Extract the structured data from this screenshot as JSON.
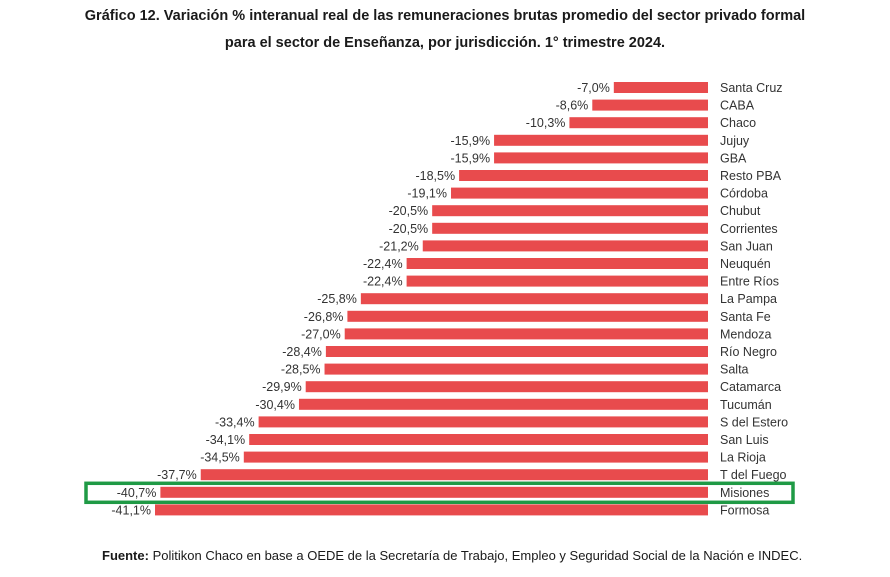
{
  "chart_data": {
    "type": "bar",
    "orientation": "horizontal",
    "title_line1": "Gráfico 12. Variación % interanual real de las remuneraciones brutas promedio del sector privado formal",
    "title_line2": "para el sector de Enseñanza, por jurisdicción. 1° trimestre 2024.",
    "categories": [
      "Santa Cruz",
      "CABA",
      "Chaco",
      "Jujuy",
      "GBA",
      "Resto PBA",
      "Córdoba",
      "Chubut",
      "Corrientes",
      "San Juan",
      "Neuquén",
      "Entre Ríos",
      "La Pampa",
      "Santa Fe",
      "Mendoza",
      "Río Negro",
      "Salta",
      "Catamarca",
      "Tucumán",
      "S del Estero",
      "San Luis",
      "La Rioja",
      "T del Fuego",
      "Misiones",
      "Formosa"
    ],
    "values": [
      -7.0,
      -8.6,
      -10.3,
      -15.9,
      -15.9,
      -18.5,
      -19.1,
      -20.5,
      -20.5,
      -21.2,
      -22.4,
      -22.4,
      -25.8,
      -26.8,
      -27.0,
      -28.4,
      -28.5,
      -29.9,
      -30.4,
      -33.4,
      -34.1,
      -34.5,
      -37.7,
      -40.7,
      -41.1
    ],
    "value_labels": [
      "-7,0%",
      "-8,6%",
      "-10,3%",
      "-15,9%",
      "-15,9%",
      "-18,5%",
      "-19,1%",
      "-20,5%",
      "-20,5%",
      "-21,2%",
      "-22,4%",
      "-22,4%",
      "-25,8%",
      "-26,8%",
      "-27,0%",
      "-28,4%",
      "-28,5%",
      "-29,9%",
      "-30,4%",
      "-33,4%",
      "-34,1%",
      "-34,5%",
      "-37,7%",
      "-40,7%",
      "-41,1%"
    ],
    "highlighted_category": "Misiones",
    "bar_color": "#e84b4d",
    "highlight_color": "#1f9a45",
    "xlim": [
      -41.1,
      0
    ]
  },
  "source": {
    "label": "Fuente:",
    "text": " Politikon Chaco en base a OEDE de la Secretaría de Trabajo, Empleo y Seguridad Social de la Nación e INDEC."
  }
}
